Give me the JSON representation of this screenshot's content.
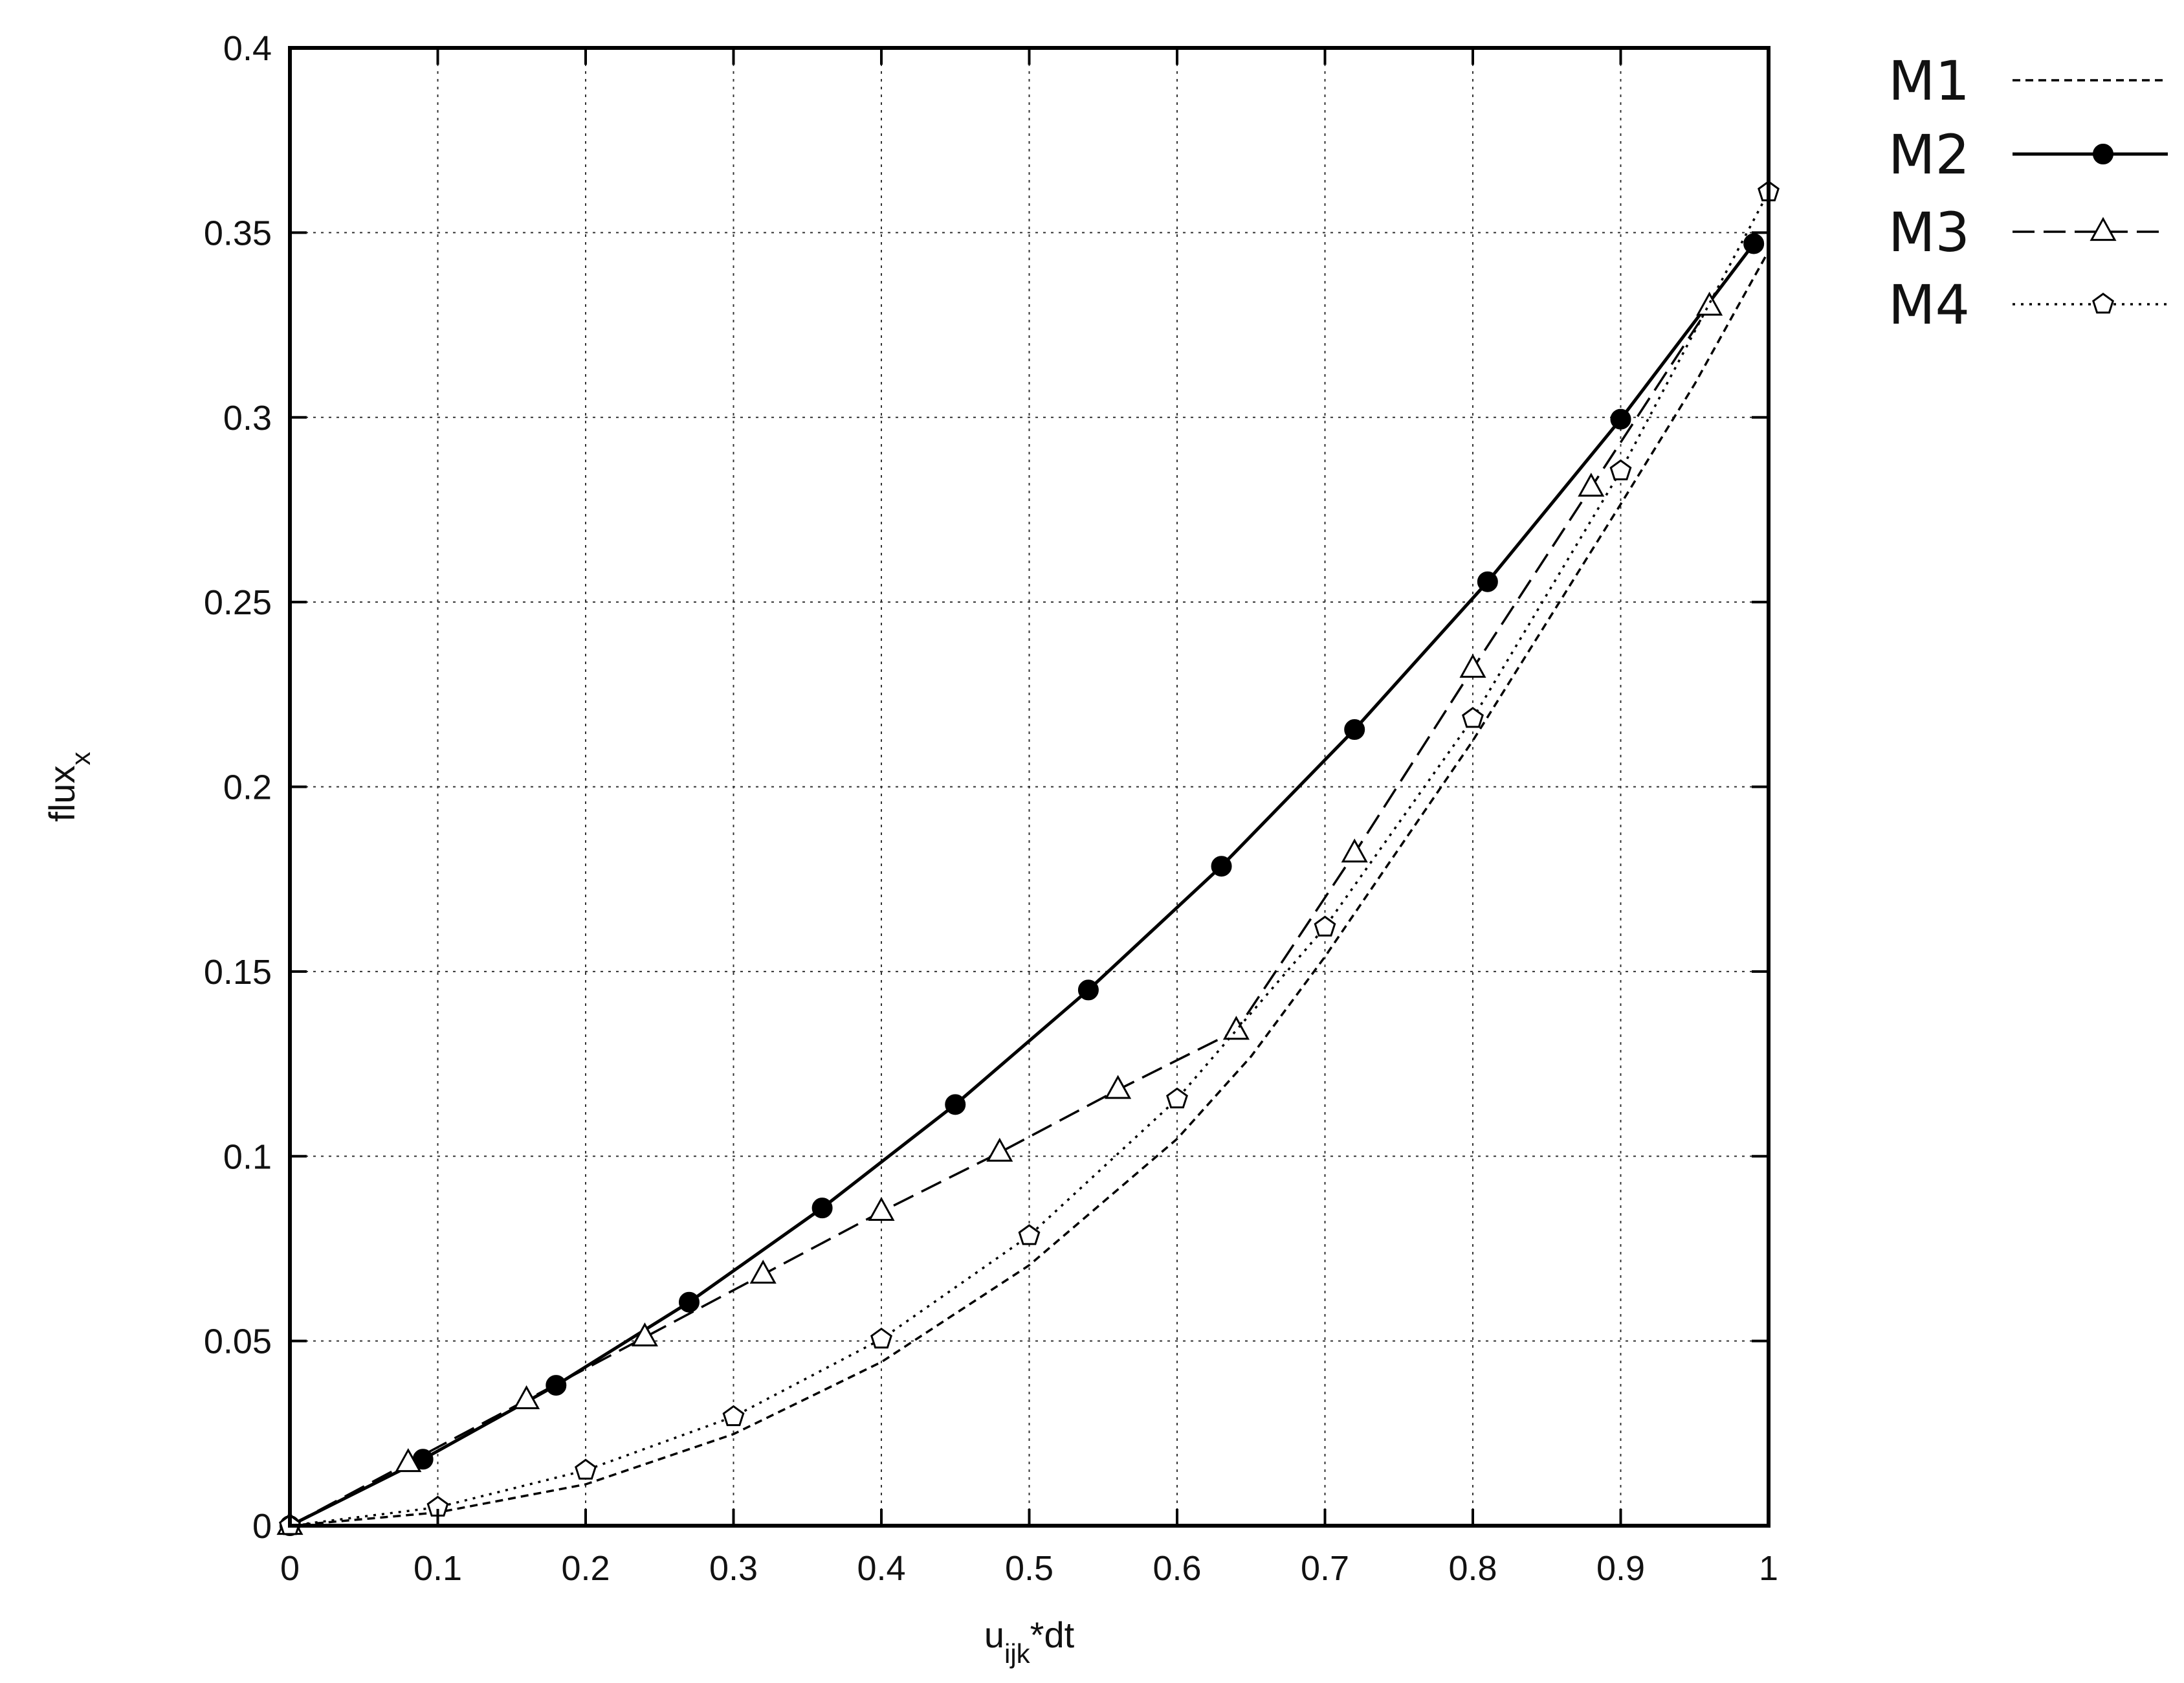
{
  "chart_data": {
    "type": "line",
    "title": "",
    "xlabel": {
      "base": "u",
      "sub": "ijk",
      "suffix": "*dt"
    },
    "ylabel": {
      "base": "flux",
      "sub": "x"
    },
    "xlim": [
      0,
      1
    ],
    "ylim": [
      0,
      0.4
    ],
    "xticks": [
      "0",
      "0.1",
      "0.2",
      "0.3",
      "0.4",
      "0.5",
      "0.6",
      "0.7",
      "0.8",
      "0.9",
      "1"
    ],
    "yticks": [
      "0",
      "0.05",
      "0.1",
      "0.15",
      "0.2",
      "0.25",
      "0.3",
      "0.35",
      "0.4"
    ],
    "grid": true,
    "legend_position": "outside-right-top",
    "series": [
      {
        "name": "M1",
        "line_style": "short-dash",
        "marker": "none",
        "points": [
          [
            0,
            0
          ],
          [
            0.1,
            0.0036
          ],
          [
            0.2,
            0.0112
          ],
          [
            0.3,
            0.0248
          ],
          [
            0.4,
            0.0443
          ],
          [
            0.5,
            0.0705
          ],
          [
            0.6,
            0.1047
          ],
          [
            0.65,
            0.127
          ],
          [
            0.7,
            0.154
          ],
          [
            0.8,
            0.2125
          ],
          [
            0.9,
            0.2765
          ],
          [
            0.95,
            0.309
          ],
          [
            1,
            0.345
          ]
        ]
      },
      {
        "name": "M2",
        "line_style": "solid",
        "marker": "filled-circle",
        "points": [
          [
            0,
            0
          ],
          [
            0.09,
            0.018
          ],
          [
            0.18,
            0.038
          ],
          [
            0.27,
            0.0605
          ],
          [
            0.36,
            0.086
          ],
          [
            0.45,
            0.114
          ],
          [
            0.54,
            0.145
          ],
          [
            0.63,
            0.1785
          ],
          [
            0.72,
            0.2155
          ],
          [
            0.81,
            0.2555
          ],
          [
            0.9,
            0.2995
          ],
          [
            0.99,
            0.347
          ]
        ]
      },
      {
        "name": "M3",
        "line_style": "long-dash",
        "marker": "open-triangle",
        "points": [
          [
            0,
            0
          ],
          [
            0.08,
            0.017
          ],
          [
            0.16,
            0.034
          ],
          [
            0.24,
            0.051
          ],
          [
            0.32,
            0.068
          ],
          [
            0.4,
            0.085
          ],
          [
            0.48,
            0.101
          ],
          [
            0.56,
            0.118
          ],
          [
            0.64,
            0.134
          ],
          [
            0.72,
            0.182
          ],
          [
            0.8,
            0.232
          ],
          [
            0.88,
            0.281
          ],
          [
            0.96,
            0.33
          ]
        ]
      },
      {
        "name": "M4",
        "line_style": "dotted",
        "marker": "open-pentagon",
        "points": [
          [
            0,
            0
          ],
          [
            0.1,
            0.005
          ],
          [
            0.2,
            0.015
          ],
          [
            0.3,
            0.0295
          ],
          [
            0.4,
            0.0505
          ],
          [
            0.5,
            0.0785
          ],
          [
            0.6,
            0.1155
          ],
          [
            0.7,
            0.162
          ],
          [
            0.8,
            0.2185
          ],
          [
            0.9,
            0.2855
          ],
          [
            1,
            0.361
          ]
        ]
      }
    ]
  }
}
